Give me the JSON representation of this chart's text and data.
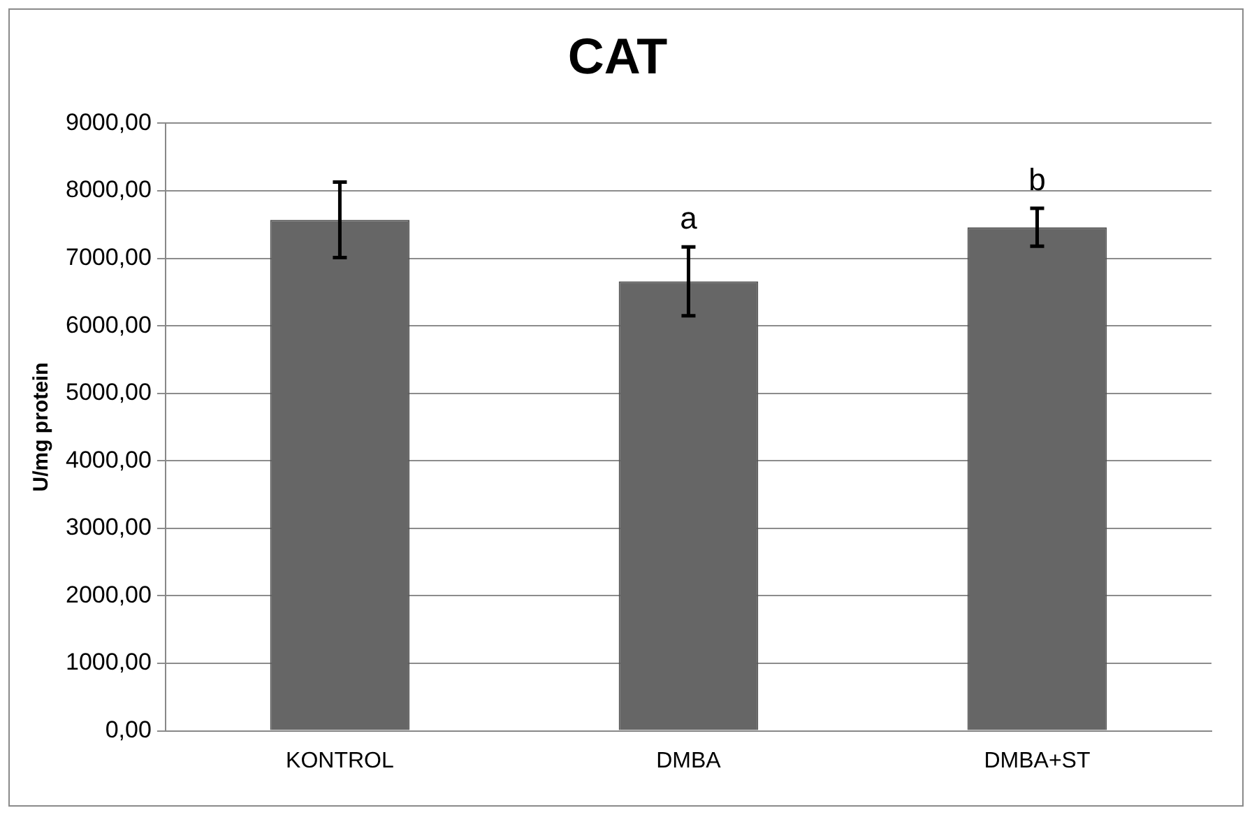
{
  "chart_data": {
    "type": "bar",
    "title": "CAT",
    "ylabel": "U/mg protein",
    "categories": [
      "KONTROL",
      "DMBA",
      "DMBA+ST"
    ],
    "values": [
      7570,
      6660,
      7460
    ],
    "errors": [
      560,
      510,
      280
    ],
    "color": "#666666",
    "ylim": [
      0,
      9000
    ],
    "yticks": [
      {
        "value": 0,
        "label": "0,00"
      },
      {
        "value": 1000,
        "label": "1000,00"
      },
      {
        "value": 2000,
        "label": "2000,00"
      },
      {
        "value": 3000,
        "label": "3000,00"
      },
      {
        "value": 4000,
        "label": "4000,00"
      },
      {
        "value": 5000,
        "label": "5000,00"
      },
      {
        "value": 6000,
        "label": "6000,00"
      },
      {
        "value": 7000,
        "label": "7000,00"
      },
      {
        "value": 8000,
        "label": "8000,00"
      },
      {
        "value": 9000,
        "label": "9000,00"
      }
    ],
    "grid": "y",
    "annotations": [
      {
        "text": "a",
        "x": "DMBA",
        "y": 6660
      },
      {
        "text": "b",
        "x": "DMBA+ST",
        "y": 7460
      }
    ]
  }
}
